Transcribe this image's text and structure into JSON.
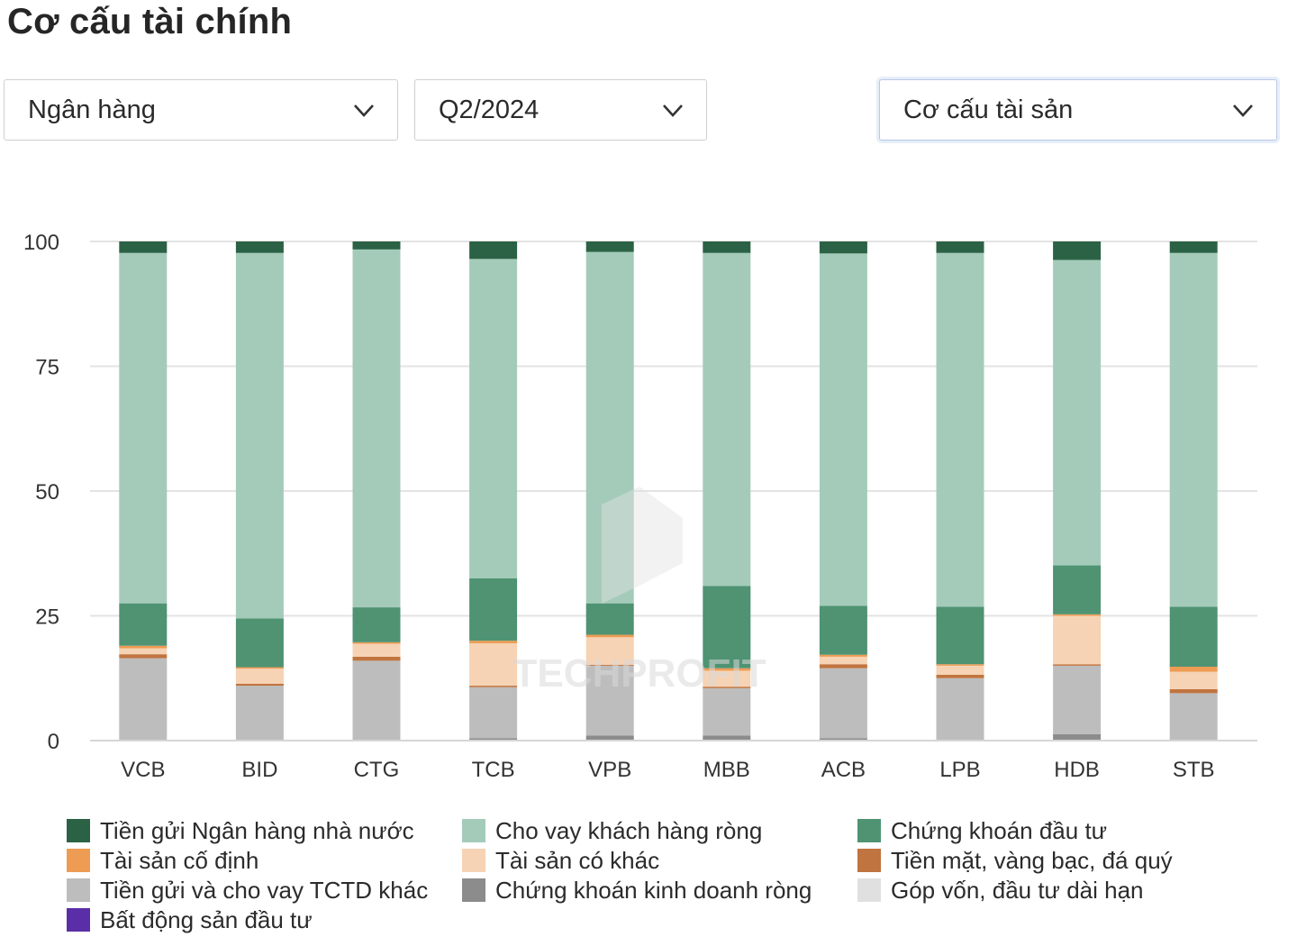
{
  "page": {
    "title": "Cơ cấu tài chính"
  },
  "filters": {
    "industry": "Ngân hàng",
    "period": "Q2/2024",
    "structure": "Cơ cấu tài sản"
  },
  "watermark": "TECHPROFIT",
  "chart_data": {
    "type": "bar",
    "stacked": true,
    "categories": [
      "VCB",
      "BID",
      "CTG",
      "TCB",
      "VPB",
      "MBB",
      "ACB",
      "LPB",
      "HDB",
      "STB"
    ],
    "ylim": [
      0,
      100
    ],
    "yticks": [
      0,
      25,
      50,
      75,
      100
    ],
    "grid": true,
    "legend_position": "bottom",
    "series": [
      {
        "name": "Chứng khoán kinh doanh ròng",
        "color": "#8c8c8c",
        "values": [
          0,
          0,
          0,
          0.5,
          1,
          1,
          0.5,
          0,
          1.3,
          0
        ]
      },
      {
        "name": "Tiền gửi và cho vay TCTD khác",
        "color": "#bdbdbd",
        "values": [
          16.5,
          11,
          16,
          10.2,
          14,
          9.5,
          14,
          12.5,
          13.7,
          9.5
        ]
      },
      {
        "name": "Tiền mặt, vàng bạc, đá quý",
        "color": "#c0743f",
        "values": [
          0.8,
          0.4,
          0.8,
          0.3,
          0.2,
          0.3,
          0.8,
          0.7,
          0.3,
          0.8
        ]
      },
      {
        "name": "Tài sản có khác",
        "color": "#f6d3b4",
        "values": [
          1.2,
          3,
          2.6,
          8.5,
          5.5,
          3.2,
          1.5,
          1.8,
          9.7,
          3.5
        ]
      },
      {
        "name": "Tài sản cố định",
        "color": "#ee9b53",
        "values": [
          0.5,
          0.3,
          0.3,
          0.5,
          0.5,
          0.5,
          0.4,
          0.3,
          0.3,
          1
        ]
      },
      {
        "name": "Chứng khoán đầu tư",
        "color": "#4f9373",
        "values": [
          8.5,
          9.8,
          7,
          12.5,
          6.3,
          16.5,
          9.8,
          11.5,
          9.8,
          12
        ]
      },
      {
        "name": "Cho vay khách hàng ròng",
        "color": "#a4cbb9",
        "values": [
          70.2,
          73.2,
          71.7,
          64,
          70.4,
          66.7,
          70.6,
          70.9,
          61.2,
          70.9
        ]
      },
      {
        "name": "Tiền gửi Ngân hàng nhà nước",
        "color": "#2b6245",
        "values": [
          2.3,
          2.3,
          1.6,
          3.5,
          2.1,
          2.3,
          2.4,
          2.3,
          3.7,
          2.3
        ]
      },
      {
        "name": "Góp vốn, đầu tư dài hạn",
        "color": "#e0e0e0",
        "values": [
          0,
          0,
          0,
          0,
          0,
          0,
          0,
          0,
          0,
          0
        ]
      },
      {
        "name": "Bất động sản đầu tư",
        "color": "#5a2ea6",
        "values": [
          0,
          0,
          0,
          0,
          0,
          0,
          0,
          0,
          0,
          0
        ]
      }
    ]
  },
  "legend": [
    {
      "label": "Tiền gửi Ngân hàng nhà nước",
      "color": "#2b6245"
    },
    {
      "label": "Cho vay khách hàng ròng",
      "color": "#a4cbb9"
    },
    {
      "label": "Chứng khoán đầu tư",
      "color": "#4f9373"
    },
    {
      "label": "Tài sản cố định",
      "color": "#ee9b53"
    },
    {
      "label": "Tài sản có khác",
      "color": "#f6d3b4"
    },
    {
      "label": "Tiền mặt, vàng bạc, đá quý",
      "color": "#c0743f"
    },
    {
      "label": "Tiền gửi và cho vay TCTD khác",
      "color": "#bdbdbd"
    },
    {
      "label": "Chứng khoán kinh doanh ròng",
      "color": "#8c8c8c"
    },
    {
      "label": "Góp vốn, đầu tư dài hạn",
      "color": "#e0e0e0"
    },
    {
      "label": "Bất động sản đầu tư",
      "color": "#5a2ea6"
    }
  ]
}
